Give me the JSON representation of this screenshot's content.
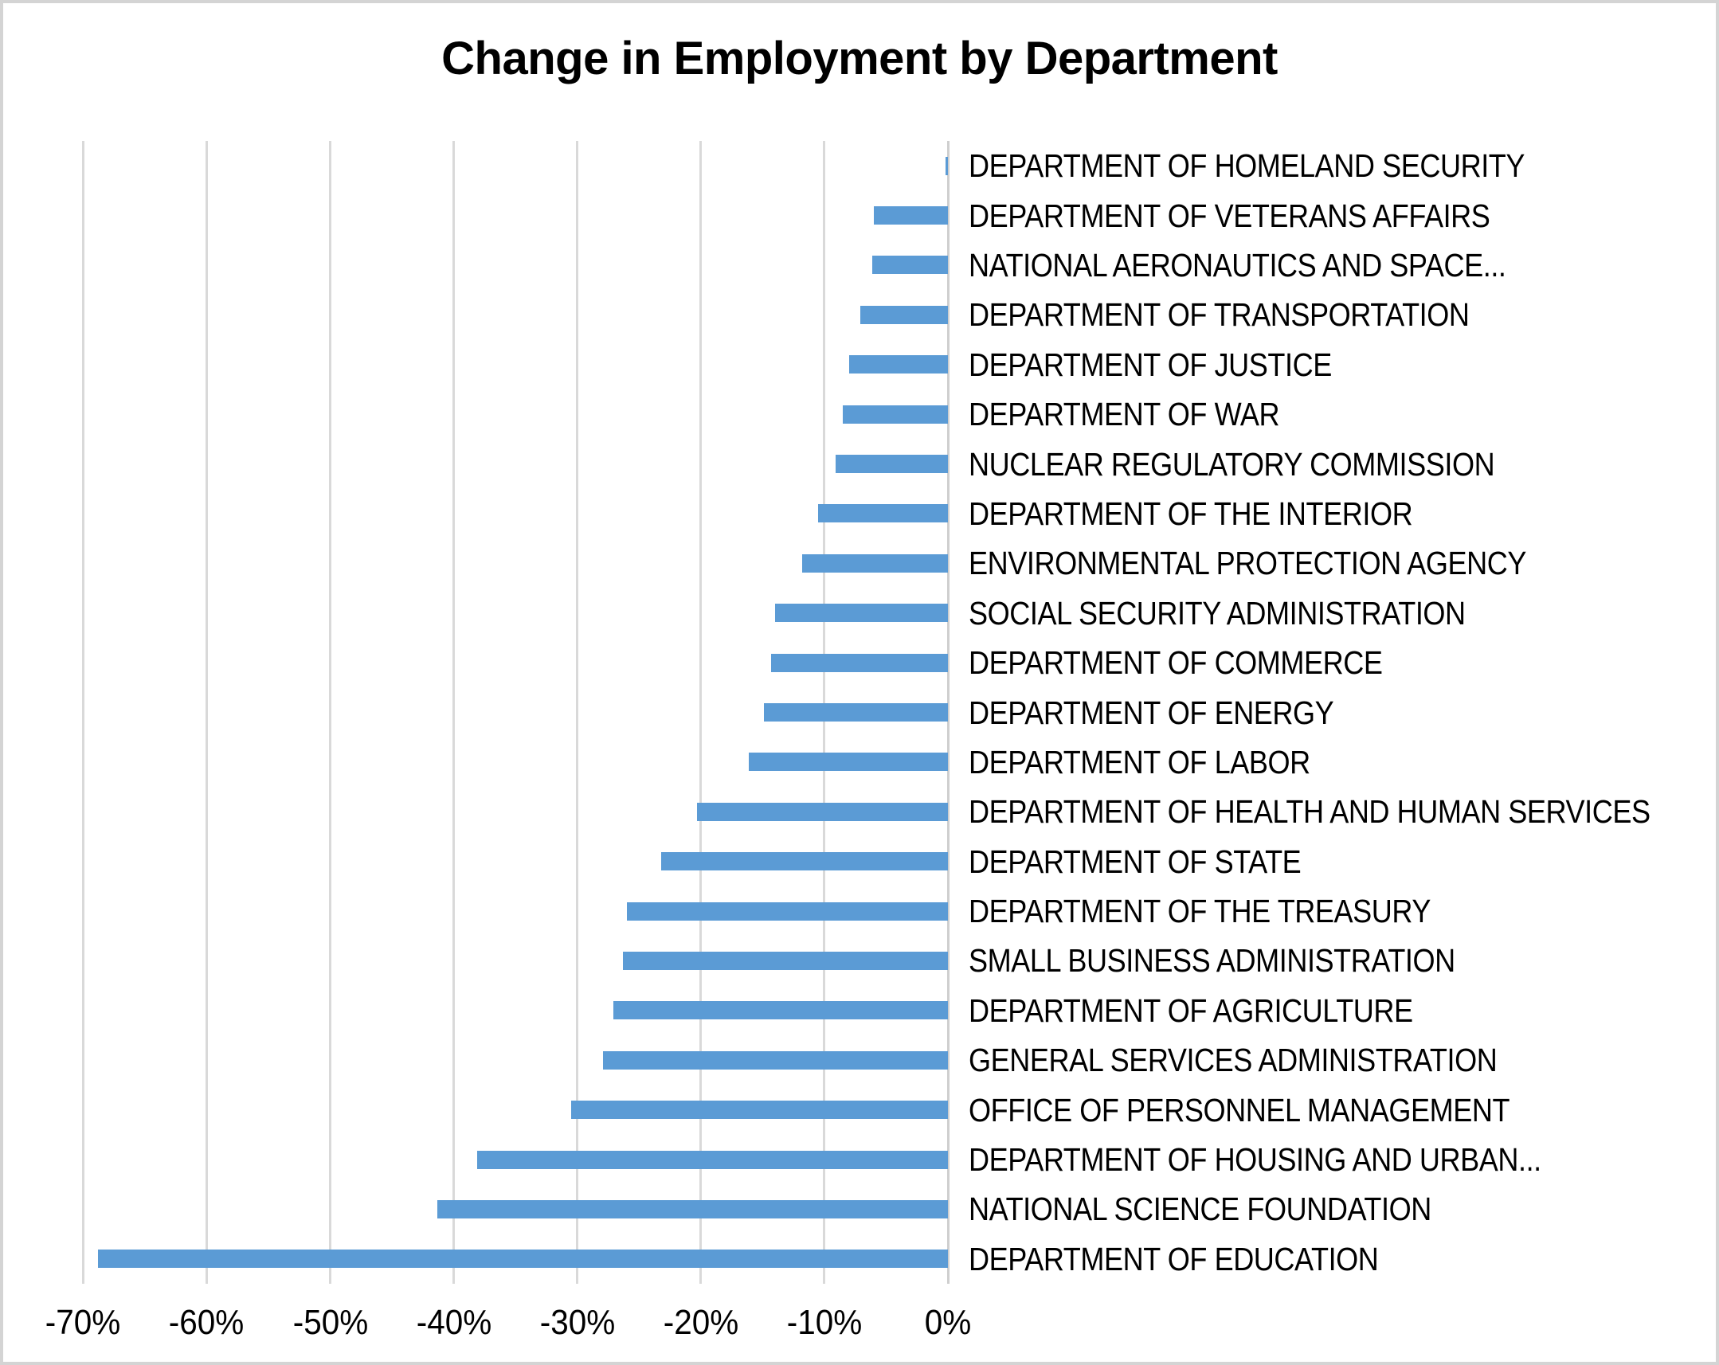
{
  "chart_data": {
    "type": "bar",
    "orientation": "horizontal",
    "title": "Change in Employment by Department",
    "xlabel": "",
    "ylabel": "",
    "units": "percent",
    "grid": "vertical",
    "bar_color": "#5b9bd5",
    "gridline_color": "#d9d9d9",
    "xlim": [
      -75,
      0
    ],
    "x_ticks": [
      "-70%",
      "-60%",
      "-50%",
      "-40%",
      "-30%",
      "-20%",
      "-10%",
      "0%"
    ],
    "x_tick_values": [
      -70,
      -60,
      -50,
      -40,
      -30,
      -20,
      -10,
      0
    ],
    "categories": [
      "DEPARTMENT OF HOMELAND SECURITY",
      "DEPARTMENT OF VETERANS AFFAIRS",
      "NATIONAL AERONAUTICS AND SPACE...",
      "DEPARTMENT OF TRANSPORTATION",
      "DEPARTMENT OF JUSTICE",
      "DEPARTMENT OF WAR",
      "NUCLEAR REGULATORY COMMISSION",
      "DEPARTMENT OF THE INTERIOR",
      "ENVIRONMENTAL PROTECTION AGENCY",
      "SOCIAL SECURITY ADMINISTRATION",
      "DEPARTMENT OF COMMERCE",
      "DEPARTMENT OF ENERGY",
      "DEPARTMENT OF LABOR",
      "DEPARTMENT OF HEALTH AND HUMAN SERVICES",
      "DEPARTMENT OF STATE",
      "DEPARTMENT OF THE TREASURY",
      "SMALL BUSINESS ADMINISTRATION",
      "DEPARTMENT OF AGRICULTURE",
      "GENERAL SERVICES ADMINISTRATION",
      "OFFICE OF PERSONNEL MANAGEMENT",
      "DEPARTMENT OF HOUSING AND URBAN...",
      "NATIONAL SCIENCE FOUNDATION",
      "DEPARTMENT OF EDUCATION"
    ],
    "values": [
      -0.2,
      -6.0,
      -6.1,
      -7.1,
      -8.0,
      -8.5,
      -9.1,
      -10.5,
      -11.8,
      -14.0,
      -14.3,
      -14.9,
      -16.1,
      -20.3,
      -23.2,
      -26.0,
      -26.3,
      -27.1,
      -27.9,
      -30.5,
      -38.1,
      -41.3,
      -68.8
    ]
  }
}
